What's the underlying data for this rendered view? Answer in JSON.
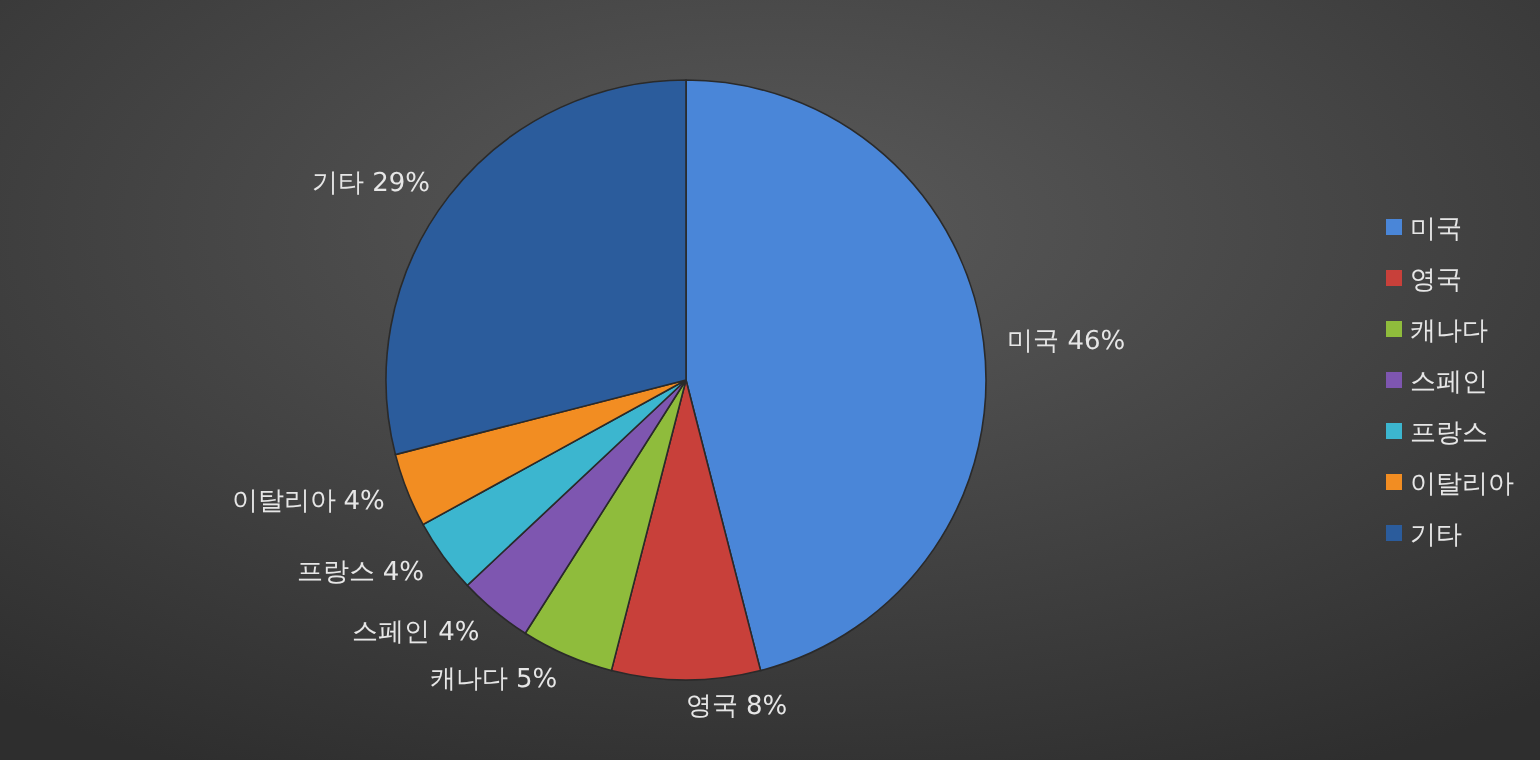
{
  "chart_data": {
    "type": "pie",
    "categories": [
      "미국",
      "영국",
      "캐나다",
      "스페인",
      "프랑스",
      "이탈리아",
      "기타"
    ],
    "values": [
      46,
      8,
      5,
      4,
      4,
      4,
      29
    ],
    "colors": [
      "#4a86d8",
      "#c8403a",
      "#8fbc3c",
      "#7e56b0",
      "#3cb6cf",
      "#f28d22",
      "#2b5c9c"
    ],
    "value_labels": [
      "46%",
      "8%",
      "5%",
      "4%",
      "4%",
      "4%",
      "29%"
    ],
    "legend": "right"
  }
}
